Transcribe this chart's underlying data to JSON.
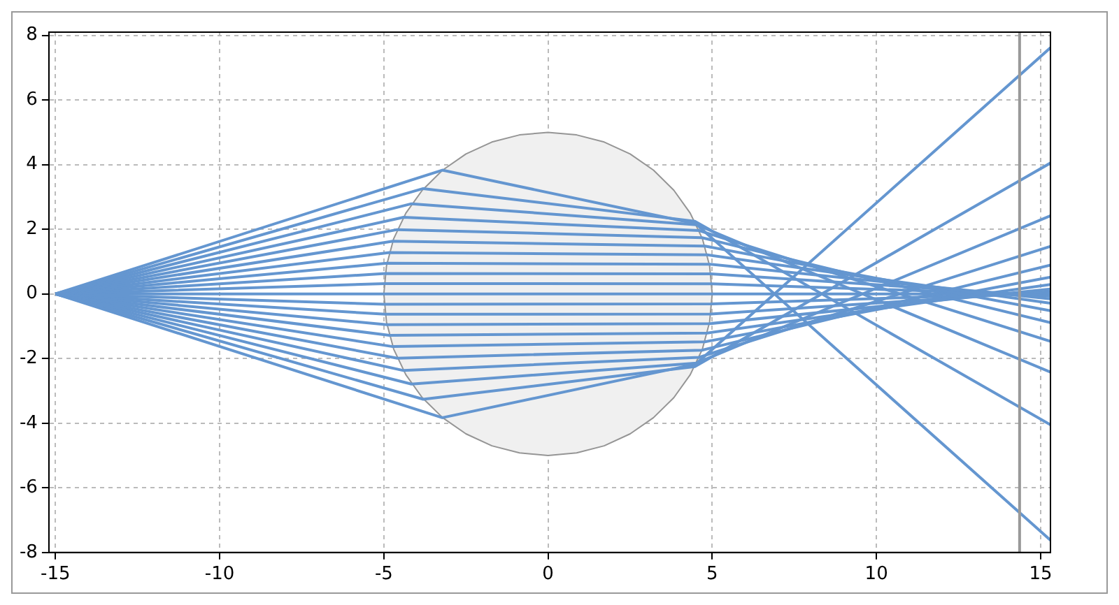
{
  "chart_data": {
    "type": "line",
    "xlim": [
      -15.2,
      15.3
    ],
    "ylim": [
      -8,
      8.1
    ],
    "xticks": [
      -15,
      -10,
      -5,
      0,
      5,
      10,
      15
    ],
    "yticks": [
      -8,
      -6,
      -4,
      -2,
      0,
      2,
      4,
      6,
      8
    ],
    "grid": true,
    "marker": "none",
    "line_style": "solid",
    "ref_lines": [
      {
        "axis": "x",
        "value": 14.36,
        "color": "#999999"
      }
    ],
    "series": [
      {
        "type": "area",
        "color": "#f0f0f0",
        "x": [
          -5,
          -4.92,
          -4.7,
          -4.33,
          -3.83,
          -3.21,
          -2.5,
          -1.71,
          -0.87,
          0,
          0.87,
          1.71,
          2.5,
          3.21,
          3.83,
          4.33,
          4.7,
          4.92,
          5
        ],
        "values": [
          0,
          0.87,
          1.71,
          2.5,
          3.21,
          3.83,
          4.33,
          4.7,
          4.92,
          5,
          4.92,
          4.7,
          4.33,
          3.83,
          3.21,
          2.5,
          1.71,
          0.87,
          0
        ]
      },
      {
        "type": "area",
        "color": "#f0f0f0",
        "x": [
          -5,
          -4.92,
          -4.7,
          -4.33,
          -3.83,
          -3.21,
          -2.5,
          -1.71,
          -0.87,
          0,
          0.87,
          1.71,
          2.5,
          3.21,
          3.83,
          4.33,
          4.7,
          4.92,
          5
        ],
        "values": [
          0,
          -0.87,
          -1.71,
          -2.5,
          -3.21,
          -3.83,
          -4.33,
          -4.7,
          -4.92,
          -5,
          -4.92,
          -4.7,
          -4.33,
          -3.83,
          -3.21,
          -2.5,
          -1.71,
          -0.87,
          0
        ]
      },
      {
        "color": "#6496d0",
        "x": [
          -15,
          -3.22,
          4.5,
          15.3
        ],
        "values": [
          0,
          3.83,
          2.17,
          -7.62
        ]
      },
      {
        "color": "#6496d0",
        "x": [
          -15,
          -3.8,
          4.47,
          15.3
        ],
        "values": [
          0,
          3.26,
          2.25,
          -4.05
        ]
      },
      {
        "color": "#6496d0",
        "x": [
          -15,
          -4.16,
          4.52,
          15.3
        ],
        "values": [
          0,
          2.79,
          2.14,
          -2.42
        ]
      },
      {
        "color": "#6496d0",
        "x": [
          -15,
          -4.4,
          4.6,
          15.3
        ],
        "values": [
          0,
          2.37,
          1.96,
          -1.47
        ]
      },
      {
        "color": "#6496d0",
        "x": [
          -15,
          -4.59,
          4.69,
          15.3
        ],
        "values": [
          0,
          1.99,
          1.74,
          -0.89
        ]
      },
      {
        "color": "#6496d0",
        "x": [
          -15,
          -4.73,
          4.78,
          15.3
        ],
        "values": [
          0,
          1.63,
          1.48,
          -0.52
        ]
      },
      {
        "color": "#6496d0",
        "x": [
          -15,
          -4.83,
          4.85,
          15.3
        ],
        "values": [
          0,
          1.28,
          1.21,
          -0.29
        ]
      },
      {
        "color": "#6496d0",
        "x": [
          -15,
          -4.91,
          4.92,
          15.3
        ],
        "values": [
          0,
          0.95,
          0.92,
          -0.15
        ]
      },
      {
        "color": "#6496d0",
        "x": [
          -15,
          -4.96,
          4.96,
          15.3
        ],
        "values": [
          0,
          0.63,
          0.62,
          -0.07
        ]
      },
      {
        "color": "#6496d0",
        "x": [
          -15,
          -4.99,
          4.99,
          15.3
        ],
        "values": [
          0,
          0.32,
          0.31,
          -0.03
        ]
      },
      {
        "color": "#6496d0",
        "x": [
          -15,
          15.3
        ],
        "values": [
          0,
          0
        ]
      },
      {
        "color": "#6496d0",
        "x": [
          -15,
          -4.99,
          4.99,
          15.3
        ],
        "values": [
          0,
          -0.32,
          -0.31,
          0.03
        ]
      },
      {
        "color": "#6496d0",
        "x": [
          -15,
          -4.96,
          4.96,
          15.3
        ],
        "values": [
          0,
          -0.63,
          -0.62,
          0.07
        ]
      },
      {
        "color": "#6496d0",
        "x": [
          -15,
          -4.91,
          4.92,
          15.3
        ],
        "values": [
          0,
          -0.95,
          -0.92,
          0.15
        ]
      },
      {
        "color": "#6496d0",
        "x": [
          -15,
          -4.83,
          4.85,
          15.3
        ],
        "values": [
          0,
          -1.28,
          -1.21,
          0.29
        ]
      },
      {
        "color": "#6496d0",
        "x": [
          -15,
          -4.73,
          4.78,
          15.3
        ],
        "values": [
          0,
          -1.63,
          -1.48,
          0.52
        ]
      },
      {
        "color": "#6496d0",
        "x": [
          -15,
          -4.59,
          4.69,
          15.3
        ],
        "values": [
          0,
          -1.99,
          -1.74,
          0.89
        ]
      },
      {
        "color": "#6496d0",
        "x": [
          -15,
          -4.4,
          4.6,
          15.3
        ],
        "values": [
          0,
          -2.37,
          -1.96,
          1.47
        ]
      },
      {
        "color": "#6496d0",
        "x": [
          -15,
          -4.16,
          4.52,
          15.3
        ],
        "values": [
          0,
          -2.79,
          -2.14,
          2.42
        ]
      },
      {
        "color": "#6496d0",
        "x": [
          -15,
          -3.8,
          4.47,
          15.3
        ],
        "values": [
          0,
          -3.26,
          -2.25,
          4.05
        ]
      },
      {
        "color": "#6496d0",
        "x": [
          -15,
          -3.22,
          4.5,
          15.3
        ],
        "values": [
          0,
          -3.83,
          -2.17,
          7.62
        ]
      }
    ]
  }
}
